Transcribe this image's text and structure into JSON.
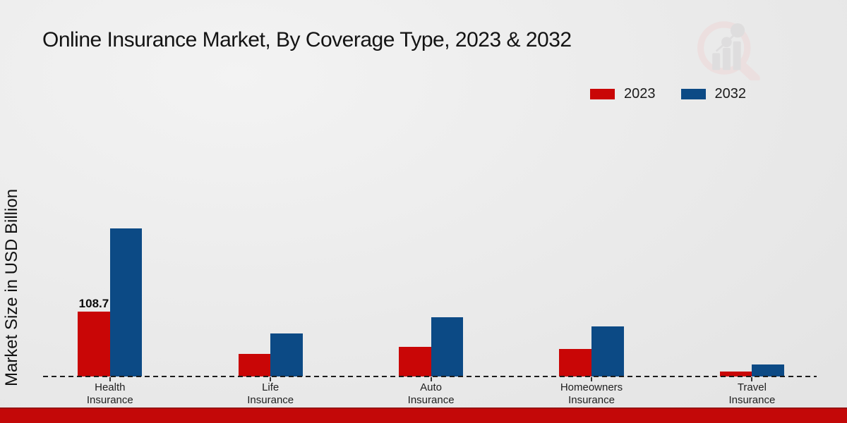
{
  "header": {
    "title": "Online Insurance Market, By Coverage Type, 2023 & 2032"
  },
  "axis": {
    "ylabel": "Market Size in USD Billion"
  },
  "legend": {
    "items": [
      {
        "label": "2023",
        "color": "#c90606"
      },
      {
        "label": "2032",
        "color": "#0c4a85"
      }
    ]
  },
  "chart_data": {
    "type": "bar",
    "title": "Online Insurance Market, By Coverage Type, 2023 & 2032",
    "categories": [
      "Health Insurance",
      "Life Insurance",
      "Auto Insurance",
      "Homeowners Insurance",
      "Travel Insurance"
    ],
    "series": [
      {
        "name": "2023",
        "color": "#c90606",
        "values": [
          108.7,
          37.3,
          49.2,
          46.1,
          8.3
        ]
      },
      {
        "name": "2032",
        "color": "#0c4a85",
        "values": [
          248.1,
          71.6,
          99.3,
          84.3,
          19.7
        ]
      }
    ],
    "value_label": {
      "text": "108.7",
      "series": "2023",
      "category": "Health Insurance"
    },
    "xlabel": "",
    "ylabel": "Market Size in USD Billion",
    "ylim": [
      0,
      260
    ],
    "grid": false,
    "legend_position": "top-right",
    "baseline_style": "dashed-zero-line"
  },
  "footer": {
    "bar_color": "#c30808"
  },
  "icons": {
    "watermark": "magnifier-bar-chart-logo"
  }
}
